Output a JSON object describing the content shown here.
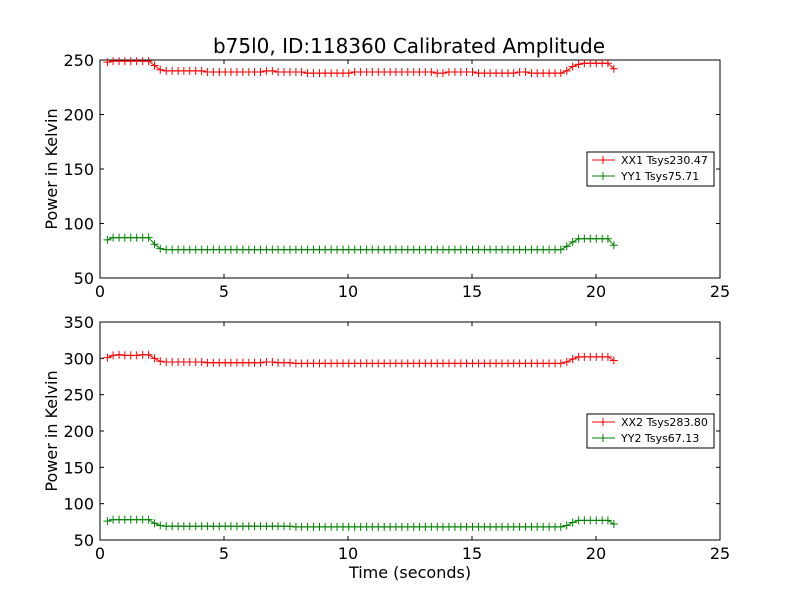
{
  "figure": {
    "title": "b75l0, ID:118360 Calibrated Amplitude",
    "xlabel": "Time (seconds)"
  },
  "chart_data": [
    {
      "type": "line",
      "title": "b75l0, ID:118360 Calibrated Amplitude",
      "xlabel": "",
      "ylabel": "Power in Kelvin",
      "xlim": [
        0,
        25
      ],
      "ylim": [
        50,
        250
      ],
      "xticks": [
        "0",
        "5",
        "10",
        "15",
        "20",
        "25"
      ],
      "yticks": [
        "50",
        "100",
        "150",
        "200",
        "250"
      ],
      "legend_position": "right",
      "grid": false,
      "series": [
        {
          "name": "XX1 Tsys230.47",
          "color": "#ff0000",
          "x": [
            0.3,
            0.53,
            0.77,
            1.0,
            1.24,
            1.48,
            1.72,
            1.96,
            2.2,
            2.43,
            2.67,
            2.91,
            3.15,
            3.38,
            3.62,
            3.86,
            4.1,
            4.33,
            4.57,
            4.81,
            5.05,
            5.28,
            5.52,
            5.76,
            6.0,
            6.23,
            6.47,
            6.71,
            6.95,
            7.18,
            7.42,
            7.66,
            7.9,
            8.13,
            8.37,
            8.61,
            8.85,
            9.08,
            9.32,
            9.56,
            9.8,
            10.03,
            10.27,
            10.51,
            10.75,
            10.98,
            11.22,
            11.46,
            11.7,
            11.93,
            12.17,
            12.41,
            12.65,
            12.88,
            13.12,
            13.36,
            13.6,
            13.83,
            14.07,
            14.31,
            14.55,
            14.78,
            15.02,
            15.26,
            15.5,
            15.73,
            15.97,
            16.21,
            16.45,
            16.68,
            16.92,
            17.16,
            17.4,
            17.63,
            17.87,
            18.11,
            18.35,
            18.58,
            18.82,
            19.06,
            19.3,
            19.53,
            19.77,
            20.01,
            20.25,
            20.48,
            20.72
          ],
          "values": [
            248,
            249,
            249,
            249,
            249,
            249,
            249,
            249,
            245,
            241,
            240,
            240,
            240,
            240,
            240,
            240,
            240,
            239,
            239,
            239,
            239,
            239,
            239,
            239,
            239,
            239,
            239,
            240,
            240,
            239,
            239,
            239,
            239,
            239,
            238,
            238,
            238,
            238,
            238,
            238,
            238,
            238,
            239,
            239,
            239,
            239,
            239,
            239,
            239,
            239,
            239,
            239,
            239,
            239,
            239,
            239,
            238,
            238,
            239,
            239,
            239,
            239,
            239,
            238,
            238,
            238,
            238,
            238,
            238,
            238,
            239,
            239,
            238,
            238,
            238,
            238,
            238,
            238,
            240,
            244,
            246,
            247,
            247,
            247,
            247,
            247,
            242
          ]
        },
        {
          "name": "YY1 Tsys75.71",
          "color": "#008000",
          "x": [
            0.3,
            0.53,
            0.77,
            1.0,
            1.24,
            1.48,
            1.72,
            1.96,
            2.2,
            2.43,
            2.67,
            2.91,
            3.15,
            3.38,
            3.62,
            3.86,
            4.1,
            4.33,
            4.57,
            4.81,
            5.05,
            5.28,
            5.52,
            5.76,
            6.0,
            6.23,
            6.47,
            6.71,
            6.95,
            7.18,
            7.42,
            7.66,
            7.9,
            8.13,
            8.37,
            8.61,
            8.85,
            9.08,
            9.32,
            9.56,
            9.8,
            10.03,
            10.27,
            10.51,
            10.75,
            10.98,
            11.22,
            11.46,
            11.7,
            11.93,
            12.17,
            12.41,
            12.65,
            12.88,
            13.12,
            13.36,
            13.6,
            13.83,
            14.07,
            14.31,
            14.55,
            14.78,
            15.02,
            15.26,
            15.5,
            15.73,
            15.97,
            16.21,
            16.45,
            16.68,
            16.92,
            17.16,
            17.4,
            17.63,
            17.87,
            18.11,
            18.35,
            18.58,
            18.82,
            19.06,
            19.3,
            19.53,
            19.77,
            20.01,
            20.25,
            20.48,
            20.72
          ],
          "values": [
            85,
            87,
            87,
            87,
            87,
            87,
            87,
            87,
            81,
            77,
            76,
            76,
            76,
            76,
            76,
            76,
            76,
            76,
            76,
            76,
            76,
            76,
            76,
            76,
            76,
            76,
            76,
            76,
            76,
            76,
            76,
            76,
            76,
            76,
            76,
            76,
            76,
            76,
            76,
            76,
            76,
            76,
            76,
            76,
            76,
            76,
            76,
            76,
            76,
            76,
            76,
            76,
            76,
            76,
            76,
            76,
            76,
            76,
            76,
            76,
            76,
            76,
            76,
            76,
            76,
            76,
            76,
            76,
            76,
            76,
            76,
            76,
            76,
            76,
            76,
            76,
            76,
            76,
            79,
            83,
            86,
            86,
            86,
            86,
            86,
            86,
            80
          ]
        }
      ]
    },
    {
      "type": "line",
      "title": "",
      "xlabel": "Time (seconds)",
      "ylabel": "Power in Kelvin",
      "xlim": [
        0,
        25
      ],
      "ylim": [
        50,
        350
      ],
      "xticks": [
        "0",
        "5",
        "10",
        "15",
        "20",
        "25"
      ],
      "yticks": [
        "50",
        "100",
        "150",
        "200",
        "250",
        "300",
        "350"
      ],
      "legend_position": "right",
      "grid": false,
      "series": [
        {
          "name": "XX2 Tsys283.80",
          "color": "#ff0000",
          "x": [
            0.3,
            0.53,
            0.77,
            1.0,
            1.24,
            1.48,
            1.72,
            1.96,
            2.2,
            2.43,
            2.67,
            2.91,
            3.15,
            3.38,
            3.62,
            3.86,
            4.1,
            4.33,
            4.57,
            4.81,
            5.05,
            5.28,
            5.52,
            5.76,
            6.0,
            6.23,
            6.47,
            6.71,
            6.95,
            7.18,
            7.42,
            7.66,
            7.9,
            8.13,
            8.37,
            8.61,
            8.85,
            9.08,
            9.32,
            9.56,
            9.8,
            10.03,
            10.27,
            10.51,
            10.75,
            10.98,
            11.22,
            11.46,
            11.7,
            11.93,
            12.17,
            12.41,
            12.65,
            12.88,
            13.12,
            13.36,
            13.6,
            13.83,
            14.07,
            14.31,
            14.55,
            14.78,
            15.02,
            15.26,
            15.5,
            15.73,
            15.97,
            16.21,
            16.45,
            16.68,
            16.92,
            17.16,
            17.4,
            17.63,
            17.87,
            18.11,
            18.35,
            18.58,
            18.82,
            19.06,
            19.3,
            19.53,
            19.77,
            20.01,
            20.25,
            20.48,
            20.72
          ],
          "values": [
            301,
            304,
            305,
            304,
            304,
            304,
            305,
            305,
            300,
            296,
            295,
            295,
            295,
            295,
            295,
            295,
            295,
            294,
            294,
            294,
            294,
            294,
            294,
            294,
            294,
            294,
            294,
            295,
            295,
            294,
            294,
            294,
            293,
            293,
            293,
            293,
            293,
            293,
            293,
            293,
            293,
            293,
            293,
            293,
            293,
            293,
            293,
            293,
            293,
            293,
            293,
            293,
            293,
            293,
            293,
            293,
            293,
            293,
            293,
            293,
            293,
            293,
            293,
            293,
            293,
            293,
            293,
            293,
            293,
            293,
            293,
            293,
            293,
            293,
            293,
            293,
            293,
            293,
            295,
            299,
            302,
            302,
            302,
            302,
            302,
            302,
            297
          ]
        },
        {
          "name": "YY2 Tsys67.13",
          "color": "#008000",
          "x": [
            0.3,
            0.53,
            0.77,
            1.0,
            1.24,
            1.48,
            1.72,
            1.96,
            2.2,
            2.43,
            2.67,
            2.91,
            3.15,
            3.38,
            3.62,
            3.86,
            4.1,
            4.33,
            4.57,
            4.81,
            5.05,
            5.28,
            5.52,
            5.76,
            6.0,
            6.23,
            6.47,
            6.71,
            6.95,
            7.18,
            7.42,
            7.66,
            7.9,
            8.13,
            8.37,
            8.61,
            8.85,
            9.08,
            9.32,
            9.56,
            9.8,
            10.03,
            10.27,
            10.51,
            10.75,
            10.98,
            11.22,
            11.46,
            11.7,
            11.93,
            12.17,
            12.41,
            12.65,
            12.88,
            13.12,
            13.36,
            13.6,
            13.83,
            14.07,
            14.31,
            14.55,
            14.78,
            15.02,
            15.26,
            15.5,
            15.73,
            15.97,
            16.21,
            16.45,
            16.68,
            16.92,
            17.16,
            17.4,
            17.63,
            17.87,
            18.11,
            18.35,
            18.58,
            18.82,
            19.06,
            19.3,
            19.53,
            19.77,
            20.01,
            20.25,
            20.48,
            20.72
          ],
          "values": [
            76,
            78,
            78,
            78,
            78,
            78,
            78,
            78,
            73,
            70,
            69,
            69,
            69,
            69,
            69,
            69,
            69,
            69,
            69,
            69,
            69,
            69,
            69,
            69,
            69,
            69,
            69,
            69,
            69,
            69,
            69,
            69,
            68,
            68,
            68,
            68,
            68,
            68,
            68,
            68,
            68,
            68,
            68,
            68,
            68,
            68,
            68,
            68,
            68,
            68,
            68,
            68,
            68,
            68,
            68,
            68,
            68,
            68,
            68,
            68,
            68,
            68,
            68,
            68,
            68,
            68,
            68,
            68,
            68,
            68,
            68,
            68,
            68,
            68,
            68,
            68,
            68,
            68,
            70,
            74,
            77,
            77,
            77,
            77,
            77,
            77,
            72
          ]
        }
      ]
    }
  ]
}
